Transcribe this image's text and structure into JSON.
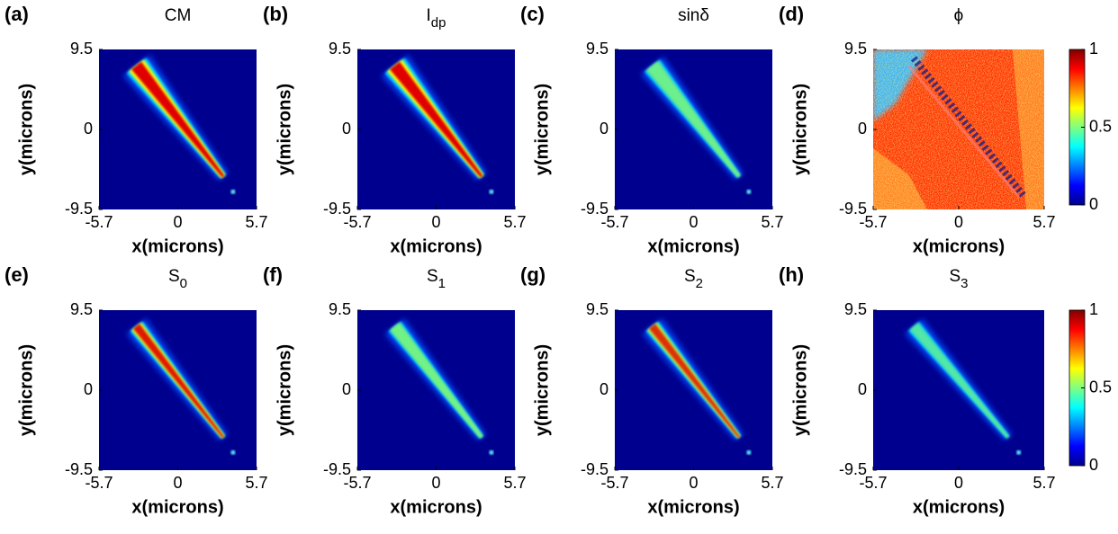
{
  "chart_data": [
    {
      "type": "heatmap",
      "label": "(a)",
      "title": "CM",
      "xlabel": "x(microns)",
      "ylabel": "y(microns)",
      "xlim": [
        -5.7,
        5.7
      ],
      "xticks": [
        -5.7,
        0,
        5.7
      ],
      "ylim": [
        -9.5,
        9.5
      ],
      "yticks": [
        -9.5,
        0,
        9.5
      ]
    },
    {
      "type": "heatmap",
      "label": "(b)",
      "title": "I",
      "title_sub": "dp",
      "xlabel": "x(microns)",
      "ylabel": "y(microns)",
      "xlim": [
        -5.7,
        5.7
      ],
      "xticks": [
        -5.7,
        0,
        5.7
      ],
      "ylim": [
        -9.5,
        9.5
      ],
      "yticks": [
        -9.5,
        0,
        9.5
      ]
    },
    {
      "type": "heatmap",
      "label": "(c)",
      "title": "sinδ",
      "xlabel": "x(microns)",
      "ylabel": "y(microns)",
      "xlim": [
        -5.7,
        5.7
      ],
      "xticks": [
        -5.7,
        0,
        5.7
      ],
      "ylim": [
        -9.5,
        9.5
      ],
      "yticks": [
        -9.5,
        0,
        9.5
      ]
    },
    {
      "type": "heatmap",
      "label": "(d)",
      "title": "ϕ",
      "xlabel": "x(microns)",
      "ylabel": "y(microns)",
      "xlim": [
        -5.7,
        5.7
      ],
      "xticks": [
        -5.7,
        0,
        5.7
      ],
      "ylim": [
        -9.5,
        9.5
      ],
      "yticks": [
        -9.5,
        0,
        9.5
      ],
      "colorbar": {
        "lim": [
          0,
          1
        ],
        "ticks": [
          0,
          0.5,
          1
        ]
      }
    },
    {
      "type": "heatmap",
      "label": "(e)",
      "title": "S",
      "title_sub": "0",
      "xlabel": "x(microns)",
      "ylabel": "y(microns)",
      "xlim": [
        -5.7,
        5.7
      ],
      "xticks": [
        -5.7,
        0,
        5.7
      ],
      "ylim": [
        -9.5,
        9.5
      ],
      "yticks": [
        -9.5,
        0,
        9.5
      ]
    },
    {
      "type": "heatmap",
      "label": "(f)",
      "title": "S",
      "title_sub": "1",
      "xlabel": "x(microns)",
      "ylabel": "y(microns)",
      "xlim": [
        -5.7,
        5.7
      ],
      "xticks": [
        -5.7,
        0,
        5.7
      ],
      "ylim": [
        -9.5,
        9.5
      ],
      "yticks": [
        -9.5,
        0,
        9.5
      ]
    },
    {
      "type": "heatmap",
      "label": "(g)",
      "title": "S",
      "title_sub": "2",
      "xlabel": "x(microns)",
      "ylabel": "y(microns)",
      "xlim": [
        -5.7,
        5.7
      ],
      "xticks": [
        -5.7,
        0,
        5.7
      ],
      "ylim": [
        -9.5,
        9.5
      ],
      "yticks": [
        -9.5,
        0,
        9.5
      ]
    },
    {
      "type": "heatmap",
      "label": "(h)",
      "title": "S",
      "title_sub": "3",
      "xlabel": "x(microns)",
      "ylabel": "y(microns)",
      "xlim": [
        -5.7,
        5.7
      ],
      "xticks": [
        -5.7,
        0,
        5.7
      ],
      "ylim": [
        -9.5,
        9.5
      ],
      "yticks": [
        -9.5,
        0,
        9.5
      ],
      "colorbar": {
        "lim": [
          0,
          1
        ],
        "ticks": [
          0,
          0.5,
          1
        ]
      }
    }
  ]
}
